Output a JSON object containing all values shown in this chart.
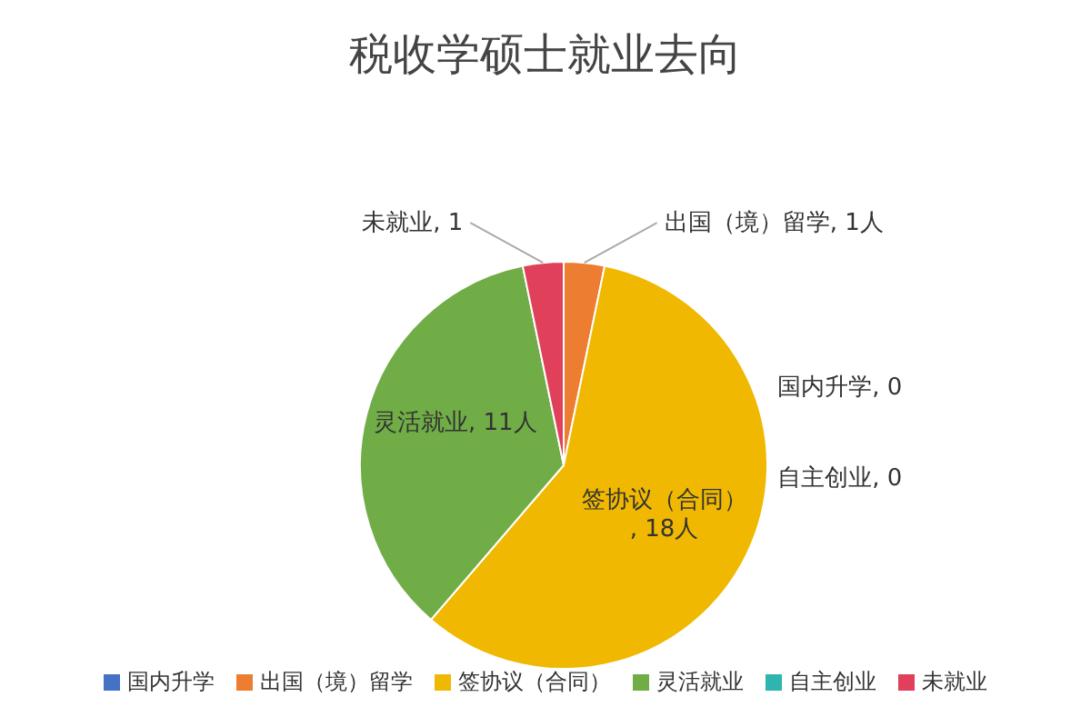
{
  "chart_data": {
    "type": "pie",
    "title": "税收学硕士就业去向",
    "categories": [
      "国内升学",
      "出国（境）留学",
      "签协议（合同）",
      "灵活就业",
      "自主创业",
      "未就业"
    ],
    "values": [
      0,
      1,
      18,
      11,
      0,
      1
    ],
    "colors": [
      "#4472c4",
      "#ed7d31",
      "#f0b800",
      "#70ad47",
      "#2eb5b0",
      "#e0405a"
    ],
    "value_labels": [
      "国内升学, 0",
      "出国（境）留学, 1人",
      "签协议（合同）, 18人",
      "灵活就业, 11人",
      "自主创业, 0",
      "未就业, 1"
    ],
    "legend": "bottom"
  }
}
